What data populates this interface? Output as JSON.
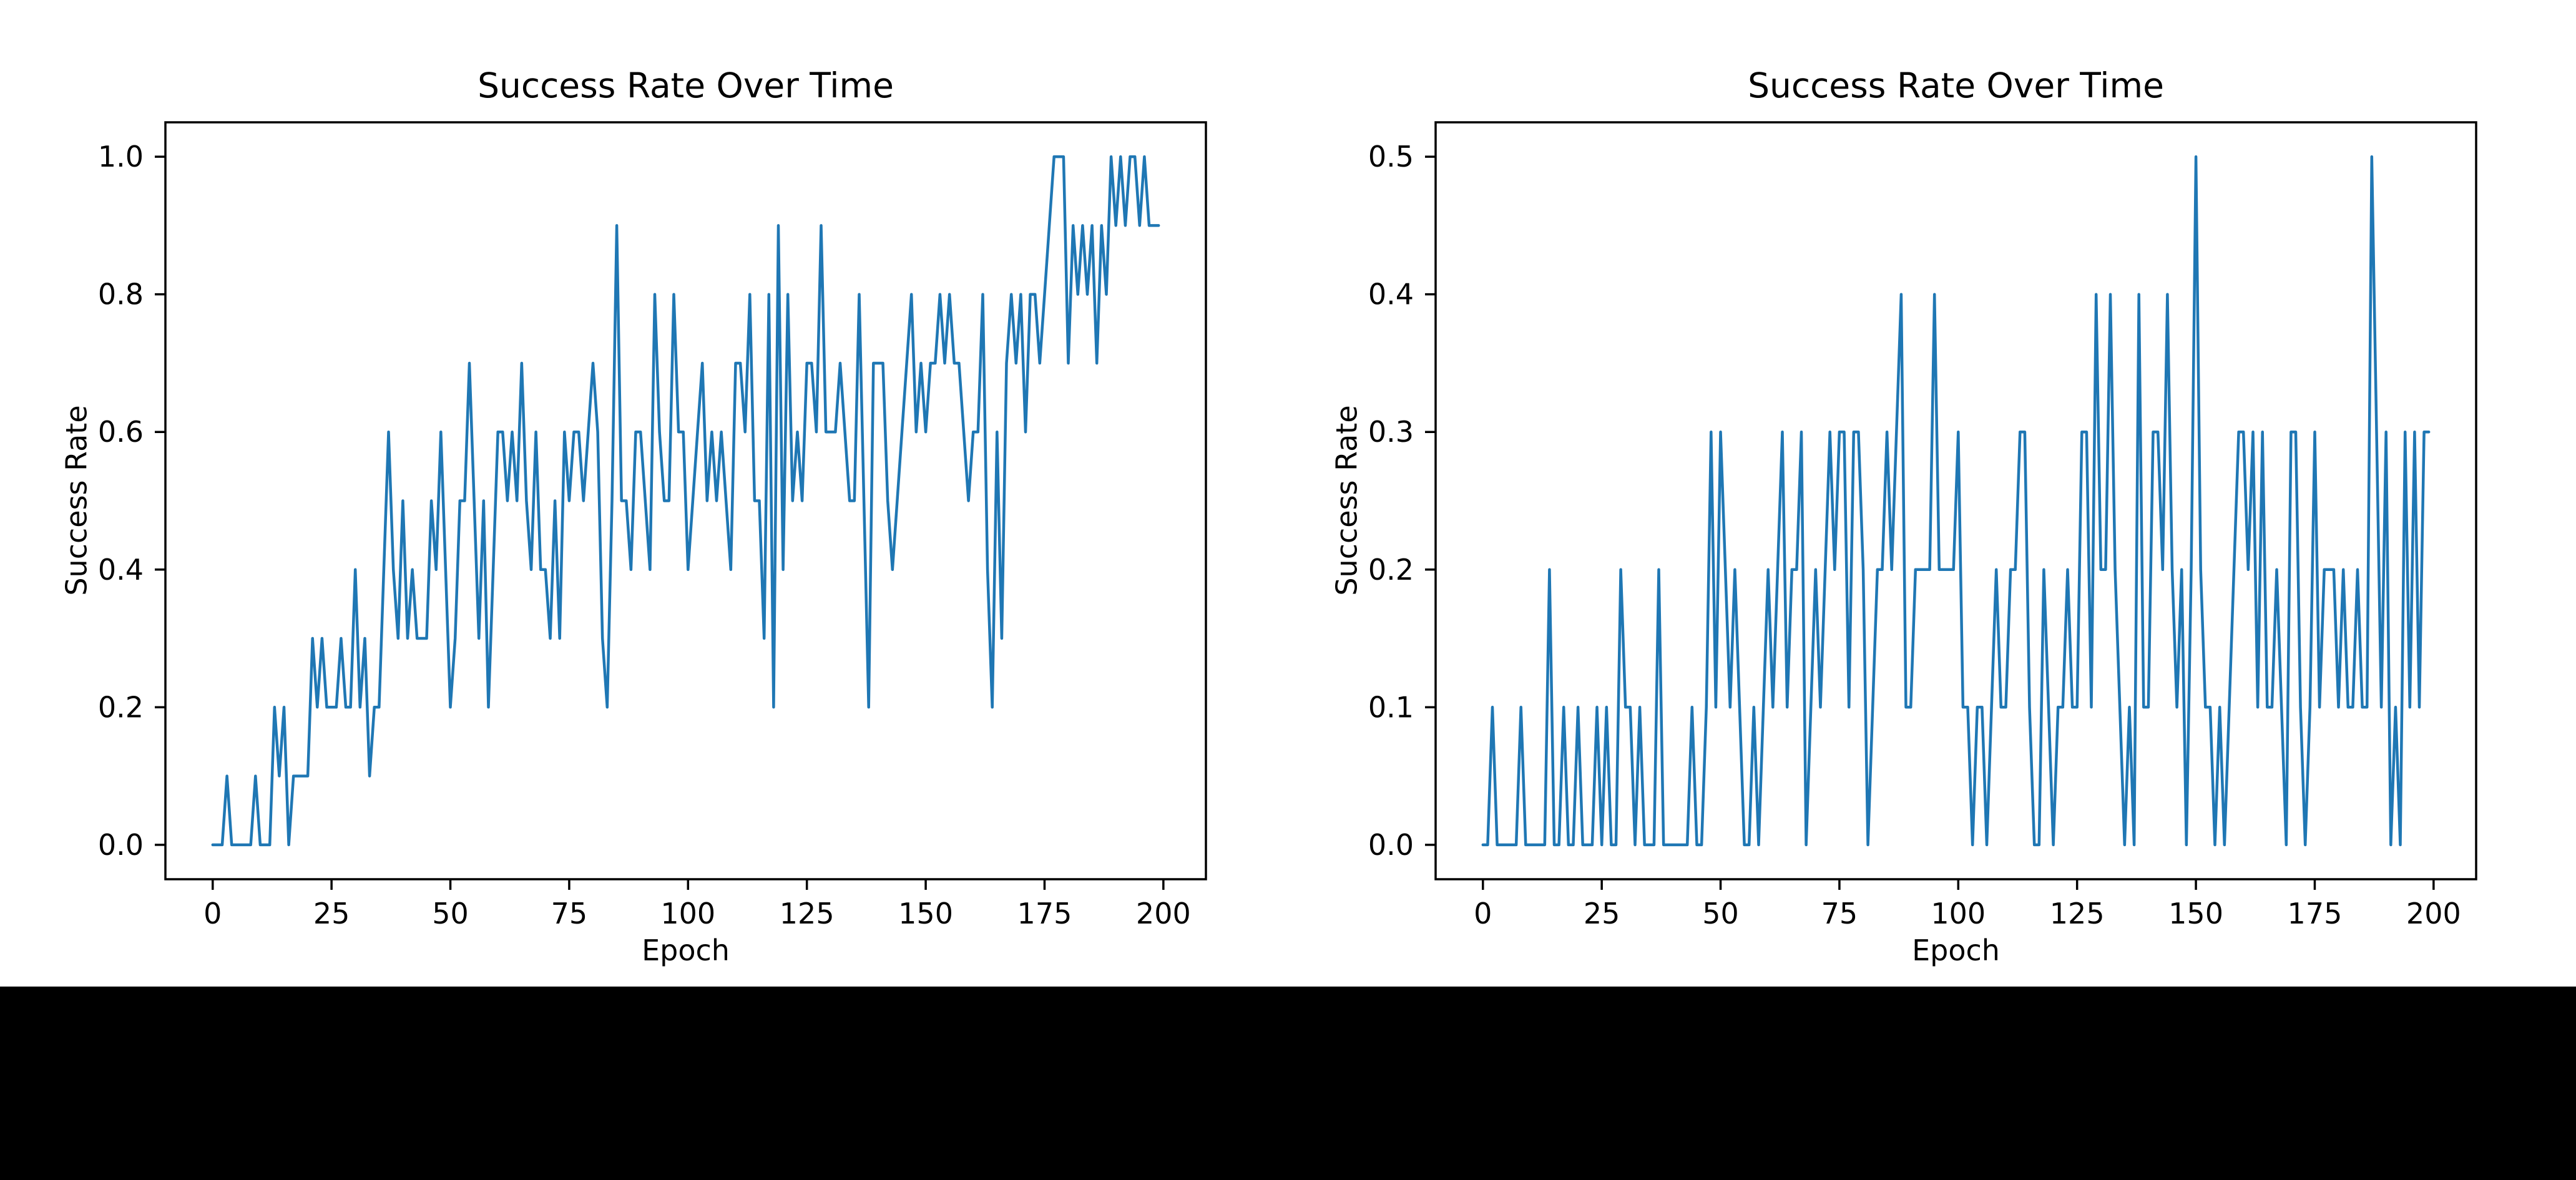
{
  "page": {
    "background_color": "#000000",
    "figure_background_color": "#ffffff"
  },
  "chart_data": [
    {
      "type": "line",
      "title": "Success Rate Over Time",
      "xlabel": "Epoch",
      "ylabel": "Success Rate",
      "line_color": "#1f77b4",
      "grid": false,
      "legend": "none",
      "x_start": 0,
      "x_step": 1,
      "xlim": [
        -9.95,
        208.95
      ],
      "ylim": [
        -0.05,
        1.05
      ],
      "x_tick_labels": [
        "0",
        "25",
        "50",
        "75",
        "100",
        "125",
        "150",
        "175",
        "200"
      ],
      "x_tick_values": [
        0,
        25,
        50,
        75,
        100,
        125,
        150,
        175,
        200
      ],
      "y_tick_labels": [
        "0.0",
        "0.2",
        "0.4",
        "0.6",
        "0.8",
        "1.0"
      ],
      "y_tick_values": [
        0.0,
        0.2,
        0.4,
        0.6,
        0.8,
        1.0
      ],
      "values": [
        0.0,
        0.0,
        0.0,
        0.1,
        0.0,
        0.0,
        0.0,
        0.0,
        0.0,
        0.1,
        0.0,
        0.0,
        0.0,
        0.2,
        0.1,
        0.2,
        0.0,
        0.1,
        0.1,
        0.1,
        0.1,
        0.3,
        0.2,
        0.3,
        0.2,
        0.2,
        0.2,
        0.3,
        0.2,
        0.2,
        0.4,
        0.2,
        0.3,
        0.1,
        0.2,
        0.2,
        0.4,
        0.6,
        0.4,
        0.3,
        0.5,
        0.3,
        0.4,
        0.3,
        0.3,
        0.3,
        0.5,
        0.4,
        0.6,
        0.4,
        0.2,
        0.3,
        0.5,
        0.5,
        0.7,
        0.5,
        0.3,
        0.5,
        0.2,
        0.4,
        0.6,
        0.6,
        0.5,
        0.6,
        0.5,
        0.7,
        0.5,
        0.4,
        0.6,
        0.4,
        0.4,
        0.3,
        0.5,
        0.3,
        0.6,
        0.5,
        0.6,
        0.6,
        0.5,
        0.6,
        0.7,
        0.6,
        0.3,
        0.2,
        0.5,
        0.9,
        0.5,
        0.5,
        0.4,
        0.6,
        0.6,
        0.5,
        0.4,
        0.8,
        0.6,
        0.5,
        0.5,
        0.8,
        0.6,
        0.6,
        0.4,
        0.5,
        0.6,
        0.7,
        0.5,
        0.6,
        0.5,
        0.6,
        0.5,
        0.4,
        0.7,
        0.7,
        0.6,
        0.8,
        0.5,
        0.5,
        0.3,
        0.8,
        0.2,
        0.9,
        0.4,
        0.8,
        0.5,
        0.6,
        0.5,
        0.7,
        0.7,
        0.6,
        0.9,
        0.6,
        0.6,
        0.6,
        0.7,
        0.6,
        0.5,
        0.5,
        0.8,
        0.5,
        0.2,
        0.7,
        0.7,
        0.7,
        0.5,
        0.4,
        0.5,
        0.6,
        0.7,
        0.8,
        0.6,
        0.7,
        0.6,
        0.7,
        0.7,
        0.8,
        0.7,
        0.8,
        0.7,
        0.7,
        0.6,
        0.5,
        0.6,
        0.6,
        0.8,
        0.4,
        0.2,
        0.6,
        0.3,
        0.7,
        0.8,
        0.7,
        0.8,
        0.6,
        0.8,
        0.8,
        0.7,
        0.8,
        0.9,
        1.0,
        1.0,
        1.0,
        0.7,
        0.9,
        0.8,
        0.9,
        0.8,
        0.9,
        0.7,
        0.9,
        0.8,
        1.0,
        0.9,
        1.0,
        0.9,
        1.0,
        1.0,
        0.9,
        1.0,
        0.9,
        0.9,
        0.9
      ]
    },
    {
      "type": "line",
      "title": "Success Rate Over Time",
      "xlabel": "Epoch",
      "ylabel": "Success Rate",
      "line_color": "#1f77b4",
      "grid": false,
      "legend": "none",
      "x_start": 0,
      "x_step": 1,
      "xlim": [
        -9.95,
        208.95
      ],
      "ylim": [
        -0.025,
        0.525
      ],
      "x_tick_labels": [
        "0",
        "25",
        "50",
        "75",
        "100",
        "125",
        "150",
        "175",
        "200"
      ],
      "x_tick_values": [
        0,
        25,
        50,
        75,
        100,
        125,
        150,
        175,
        200
      ],
      "y_tick_labels": [
        "0.0",
        "0.1",
        "0.2",
        "0.3",
        "0.4",
        "0.5"
      ],
      "y_tick_values": [
        0.0,
        0.1,
        0.2,
        0.3,
        0.4,
        0.5
      ],
      "values": [
        0.0,
        0.0,
        0.1,
        0.0,
        0.0,
        0.0,
        0.0,
        0.0,
        0.1,
        0.0,
        0.0,
        0.0,
        0.0,
        0.0,
        0.2,
        0.0,
        0.0,
        0.1,
        0.0,
        0.0,
        0.1,
        0.0,
        0.0,
        0.0,
        0.1,
        0.0,
        0.1,
        0.0,
        0.0,
        0.2,
        0.1,
        0.1,
        0.0,
        0.1,
        0.0,
        0.0,
        0.0,
        0.2,
        0.0,
        0.0,
        0.0,
        0.0,
        0.0,
        0.0,
        0.1,
        0.0,
        0.0,
        0.1,
        0.3,
        0.1,
        0.3,
        0.2,
        0.1,
        0.2,
        0.1,
        0.0,
        0.0,
        0.1,
        0.0,
        0.1,
        0.2,
        0.1,
        0.2,
        0.3,
        0.1,
        0.2,
        0.2,
        0.3,
        0.0,
        0.1,
        0.2,
        0.1,
        0.2,
        0.3,
        0.2,
        0.3,
        0.3,
        0.1,
        0.3,
        0.3,
        0.2,
        0.0,
        0.1,
        0.2,
        0.2,
        0.3,
        0.2,
        0.3,
        0.4,
        0.1,
        0.1,
        0.2,
        0.2,
        0.2,
        0.2,
        0.4,
        0.2,
        0.2,
        0.2,
        0.2,
        0.3,
        0.1,
        0.1,
        0.0,
        0.1,
        0.1,
        0.0,
        0.1,
        0.2,
        0.1,
        0.1,
        0.2,
        0.2,
        0.3,
        0.3,
        0.1,
        0.0,
        0.0,
        0.2,
        0.1,
        0.0,
        0.1,
        0.1,
        0.2,
        0.1,
        0.1,
        0.3,
        0.3,
        0.1,
        0.4,
        0.2,
        0.2,
        0.4,
        0.2,
        0.1,
        0.0,
        0.1,
        0.0,
        0.4,
        0.1,
        0.1,
        0.3,
        0.3,
        0.2,
        0.4,
        0.2,
        0.1,
        0.2,
        0.0,
        0.2,
        0.5,
        0.2,
        0.1,
        0.1,
        0.0,
        0.1,
        0.0,
        0.1,
        0.2,
        0.3,
        0.3,
        0.2,
        0.3,
        0.1,
        0.3,
        0.1,
        0.1,
        0.2,
        0.1,
        0.0,
        0.3,
        0.3,
        0.1,
        0.0,
        0.1,
        0.3,
        0.1,
        0.2,
        0.2,
        0.2,
        0.1,
        0.2,
        0.1,
        0.1,
        0.2,
        0.1,
        0.1,
        0.5,
        0.3,
        0.1,
        0.3,
        0.0,
        0.1,
        0.0,
        0.3,
        0.1,
        0.3,
        0.1,
        0.3,
        0.3
      ]
    }
  ]
}
